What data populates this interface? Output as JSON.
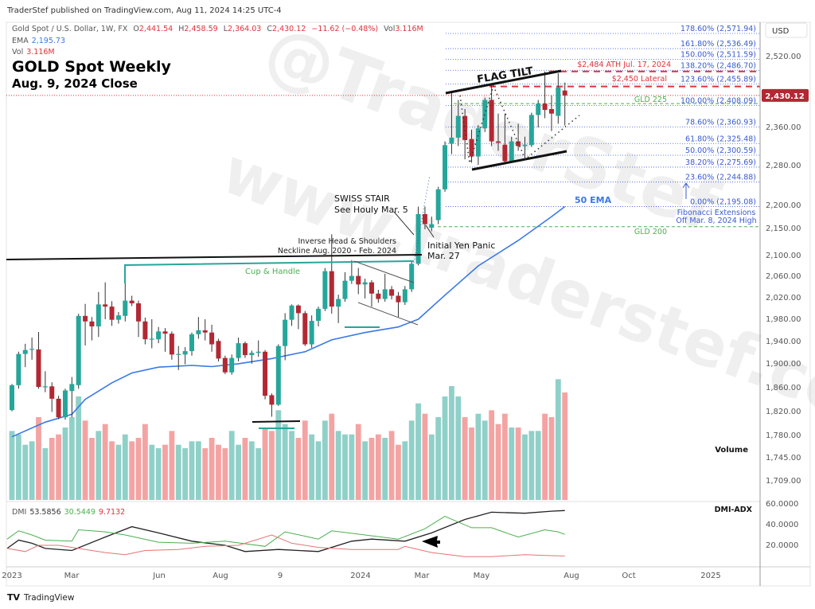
{
  "header": {
    "publisher": "TraderStef published on TradingView.com, Aug 11, 2024 14:25 UTC-4",
    "symbol": "Gold Spot / U.S. Dollar, 1W, FX",
    "o_label": "O",
    "o": "2,441.54",
    "h_label": "H",
    "h": "2,458.59",
    "l_label": "L",
    "l": "2,364.03",
    "c_label": "C",
    "c": "2,430.12",
    "change": "−11.62 (−0.48%)",
    "vol_label": "Vol",
    "vol": "3.116M",
    "ema_label": "EMA",
    "ema": "2,195.73",
    "vol2_label": "Vol",
    "vol2": "3.116M",
    "title": "GOLD Spot Weekly",
    "subtitle": "Aug. 9, 2024 Close"
  },
  "price_axis": {
    "currency": "USD",
    "ticks": [
      "2,520.00",
      "2,360.00",
      "2,280.00",
      "2,200.00",
      "2,150.00",
      "2,100.00",
      "2,060.00",
      "2,020.00",
      "1,980.00",
      "1,940.00",
      "1,900.00",
      "1,860.00",
      "1,820.00",
      "1,780.00",
      "1,745.00",
      "1,709.00"
    ],
    "last_price": "2,430.12",
    "scale": "log"
  },
  "time_axis": [
    "2023",
    "Mar",
    "Jun",
    "Aug",
    "9",
    "2024",
    "Mar",
    "May",
    "Aug",
    "Oct",
    "2025"
  ],
  "annotations": {
    "flag": "FLAG TILT",
    "ath": "$2,484 ATH Jul. 17, 2024",
    "lateral": "$2,450 Lateral",
    "gld225": "GLD 225",
    "gld200": "GLD 200",
    "ema50": "50 EMA",
    "fib_note_1": "Fibonacci Extensions",
    "fib_note_2": "Off Mar. 8, 2024 High",
    "swiss_1": "SWISS STAIR",
    "swiss_2": "See Houly Mar. 5",
    "ihs_1": "Inverse Head & Shoulders",
    "ihs_2": "Neckline Aug. 2020 - Feb. 2024",
    "yen_1": "Initial Yen Panic",
    "yen_2": "Mar. 27",
    "cup": "Cup & Handle",
    "volume": "Volume",
    "watermark_1": "@TraderStef",
    "watermark_2": "www.traderstef.com"
  },
  "fib_levels": [
    {
      "label": "178.60% (2,571.94)",
      "price": 2571.94
    },
    {
      "label": "161.80% (2,536.49)",
      "price": 2536.49
    },
    {
      "label": "150.00% (2,511.59)",
      "price": 2511.59
    },
    {
      "label": "138.20% (2,486.70)",
      "price": 2486.7
    },
    {
      "label": "123.60% (2,455.89)",
      "price": 2455.89
    },
    {
      "label": "100.00% (2,408.09)",
      "price": 2408.09
    },
    {
      "label": "78.60% (2,360.93)",
      "price": 2360.93
    },
    {
      "label": "61.80% (2,325.48)",
      "price": 2325.48
    },
    {
      "label": "50.00% (2,300.59)",
      "price": 2300.59
    },
    {
      "label": "38.20% (2,275.69)",
      "price": 2275.69
    },
    {
      "label": "23.60% (2,244.88)",
      "price": 2244.88
    },
    {
      "label": "0.00% (2,195.08)",
      "price": 2195.08
    }
  ],
  "dmi": {
    "label": "DMI",
    "adx": "53.5856",
    "plus_di": "30.5449",
    "minus_di": "9.7132",
    "title": "DMI-ADX",
    "ticks": [
      "60.0000",
      "40.0000",
      "20.0000"
    ]
  },
  "footer": {
    "brand": "TradingView"
  },
  "colors": {
    "up": "#26a69a",
    "down": "#b22833",
    "vol_up": "#8fd0c8",
    "vol_down": "#f4a3a3",
    "ema": "#3b78e7",
    "fib": "#3a5bd0",
    "red_level": "#e0323c",
    "gld": "#4caf50",
    "adx": "#222222",
    "plus_di": "#4caf50",
    "minus_di": "#e57373"
  },
  "chart_data": {
    "type": "candlestick",
    "interval": "1W",
    "x_range": [
      "Jan 2023",
      "Aug 9 2024"
    ],
    "ohlc": [
      [
        1822,
        1866,
        1820,
        1864
      ],
      [
        1864,
        1922,
        1858,
        1918
      ],
      [
        1918,
        1936,
        1895,
        1925
      ],
      [
        1926,
        1947,
        1908,
        1927
      ],
      [
        1926,
        1957,
        1858,
        1861
      ],
      [
        1861,
        1888,
        1852,
        1862
      ],
      [
        1862,
        1869,
        1819,
        1841
      ],
      [
        1841,
        1846,
        1807,
        1810
      ],
      [
        1810,
        1858,
        1806,
        1855
      ],
      [
        1854,
        1878,
        1810,
        1866
      ],
      [
        1864,
        1990,
        1858,
        1986
      ],
      [
        1986,
        2008,
        1933,
        1976
      ],
      [
        1976,
        1984,
        1942,
        1967
      ],
      [
        1967,
        2030,
        1948,
        2007
      ],
      [
        2007,
        2048,
        1980,
        2003
      ],
      [
        2003,
        2013,
        1968,
        1979
      ],
      [
        1979,
        1993,
        1972,
        1987
      ],
      [
        1986,
        2079,
        1976,
        2014
      ],
      [
        2014,
        2023,
        2004,
        2009
      ],
      [
        2009,
        2014,
        1948,
        1976
      ],
      [
        1976,
        1983,
        1935,
        1944
      ],
      [
        1944,
        1980,
        1928,
        1945
      ],
      [
        1944,
        1966,
        1937,
        1958
      ],
      [
        1958,
        1964,
        1922,
        1954
      ],
      [
        1954,
        1958,
        1908,
        1917
      ],
      [
        1917,
        1932,
        1890,
        1918
      ],
      [
        1917,
        1930,
        1900,
        1923
      ],
      [
        1923,
        1956,
        1915,
        1953
      ],
      [
        1953,
        1984,
        1945,
        1960
      ],
      [
        1960,
        1980,
        1942,
        1956
      ],
      [
        1956,
        1970,
        1922,
        1935
      ],
      [
        1941,
        1945,
        1905,
        1910
      ],
      [
        1911,
        1915,
        1883,
        1886
      ],
      [
        1886,
        1917,
        1882,
        1911
      ],
      [
        1911,
        1947,
        1905,
        1937
      ],
      [
        1937,
        1940,
        1911,
        1916
      ],
      [
        1916,
        1924,
        1901,
        1920
      ],
      [
        1920,
        1942,
        1913,
        1922
      ],
      [
        1922,
        1925,
        1840,
        1846
      ],
      [
        1847,
        1850,
        1811,
        1831
      ],
      [
        1831,
        1935,
        1829,
        1932
      ],
      [
        1932,
        1991,
        1907,
        1979
      ],
      [
        1979,
        2007,
        1968,
        2005
      ],
      [
        2005,
        2007,
        1962,
        1991
      ],
      [
        1991,
        1995,
        1932,
        1935
      ],
      [
        1935,
        1987,
        1929,
        1977
      ],
      [
        1977,
        2003,
        1967,
        1999
      ],
      [
        1999,
        2075,
        1995,
        2069
      ],
      [
        2069,
        2140,
        1990,
        2003
      ],
      [
        2003,
        2025,
        1973,
        2017
      ],
      [
        2017,
        2067,
        2012,
        2051
      ],
      [
        2051,
        2090,
        2045,
        2060
      ],
      [
        2060,
        2075,
        2026,
        2044
      ],
      [
        2044,
        2055,
        2018,
        2048
      ],
      [
        2048,
        2052,
        2003,
        2027
      ],
      [
        2027,
        2034,
        2010,
        2017
      ],
      [
        2017,
        2064,
        2012,
        2035
      ],
      [
        2035,
        2041,
        2016,
        2023
      ],
      [
        2023,
        2030,
        1984,
        2011
      ],
      [
        2011,
        2041,
        2006,
        2035
      ],
      [
        2035,
        2088,
        2030,
        2083
      ],
      [
        2083,
        2195,
        2080,
        2180
      ],
      [
        2180,
        2195,
        2150,
        2160
      ],
      [
        2153,
        2175,
        2146,
        2160
      ],
      [
        2168,
        2235,
        2160,
        2230
      ],
      [
        2230,
        2330,
        2225,
        2322
      ],
      [
        2325,
        2438,
        2303,
        2338
      ],
      [
        2338,
        2420,
        2320,
        2385
      ],
      [
        2385,
        2400,
        2292,
        2333
      ],
      [
        2335,
        2355,
        2285,
        2298
      ],
      [
        2298,
        2365,
        2280,
        2358
      ],
      [
        2358,
        2425,
        2350,
        2420
      ],
      [
        2420,
        2456,
        2320,
        2330
      ],
      [
        2330,
        2390,
        2310,
        2327
      ],
      [
        2323,
        2390,
        2285,
        2288
      ],
      [
        2288,
        2340,
        2285,
        2330
      ],
      [
        2330,
        2368,
        2310,
        2320
      ],
      [
        2320,
        2340,
        2293,
        2323
      ],
      [
        2322,
        2392,
        2318,
        2387
      ],
      [
        2387,
        2420,
        2360,
        2412
      ],
      [
        2412,
        2484,
        2380,
        2398
      ],
      [
        2400,
        2430,
        2352,
        2390
      ],
      [
        2385,
        2480,
        2368,
        2448
      ],
      [
        2441,
        2459,
        2364,
        2430
      ]
    ],
    "volume_m": [
      2.0,
      1.9,
      1.6,
      1.7,
      2.4,
      1.5,
      1.8,
      1.9,
      2.1,
      2.4,
      3.0,
      2.3,
      1.8,
      2.0,
      2.2,
      1.7,
      1.6,
      1.9,
      1.7,
      1.8,
      2.2,
      1.6,
      1.5,
      1.6,
      2.0,
      1.6,
      1.5,
      1.7,
      1.7,
      1.5,
      1.8,
      1.6,
      1.5,
      2.0,
      1.6,
      1.8,
      1.7,
      1.5,
      2.1,
      2.0,
      2.6,
      2.2,
      2.0,
      1.8,
      2.3,
      1.9,
      1.7,
      2.3,
      2.5,
      2.0,
      1.9,
      1.9,
      2.2,
      1.7,
      1.8,
      1.9,
      1.8,
      2.0,
      1.6,
      1.7,
      2.3,
      2.8,
      2.5,
      1.9,
      2.4,
      3.0,
      3.3,
      3.0,
      2.4,
      2.1,
      2.5,
      2.3,
      2.6,
      2.2,
      2.5,
      2.1,
      2.1,
      1.9,
      2.0,
      2.0,
      2.5,
      2.4,
      3.5,
      3.116
    ],
    "ema50": [
      [
        0,
        1778
      ],
      [
        5,
        1802
      ],
      [
        9,
        1815
      ],
      [
        11,
        1840
      ],
      [
        15,
        1868
      ],
      [
        18,
        1885
      ],
      [
        22,
        1895
      ],
      [
        27,
        1898
      ],
      [
        30,
        1896
      ],
      [
        34,
        1901
      ],
      [
        39,
        1910
      ],
      [
        44,
        1922
      ],
      [
        48,
        1943
      ],
      [
        53,
        1956
      ],
      [
        58,
        1966
      ],
      [
        61,
        1980
      ],
      [
        65,
        2024
      ],
      [
        70,
        2079
      ],
      [
        76,
        2128
      ],
      [
        81,
        2175
      ],
      [
        83,
        2195
      ]
    ],
    "adx": [
      [
        -1,
        17
      ],
      [
        1,
        25
      ],
      [
        3,
        22
      ],
      [
        5,
        17
      ],
      [
        9,
        15
      ],
      [
        14,
        28
      ],
      [
        18,
        38
      ],
      [
        22,
        32
      ],
      [
        27,
        24
      ],
      [
        32,
        20
      ],
      [
        35,
        14
      ],
      [
        40,
        16
      ],
      [
        46,
        14
      ],
      [
        51,
        24
      ],
      [
        54,
        26
      ],
      [
        59,
        24
      ],
      [
        63,
        32
      ],
      [
        68,
        45
      ],
      [
        72,
        52
      ],
      [
        77,
        51
      ],
      [
        81,
        53
      ],
      [
        83,
        53.59
      ]
    ],
    "plus_di": [
      [
        -1,
        26
      ],
      [
        1,
        34
      ],
      [
        3,
        30
      ],
      [
        5,
        25
      ],
      [
        9,
        24
      ],
      [
        10,
        35
      ],
      [
        14,
        33
      ],
      [
        17,
        30
      ],
      [
        22,
        23
      ],
      [
        27,
        22
      ],
      [
        32,
        24
      ],
      [
        38,
        19
      ],
      [
        41,
        33
      ],
      [
        46,
        26
      ],
      [
        48,
        34
      ],
      [
        53,
        30
      ],
      [
        58,
        26
      ],
      [
        62,
        36
      ],
      [
        65,
        48
      ],
      [
        69,
        37
      ],
      [
        72,
        37
      ],
      [
        76,
        28
      ],
      [
        80,
        35
      ],
      [
        82,
        33
      ],
      [
        83,
        30.54
      ]
    ],
    "minus_di": [
      [
        -1,
        17
      ],
      [
        2,
        14
      ],
      [
        4,
        20
      ],
      [
        7,
        20
      ],
      [
        10,
        17
      ],
      [
        14,
        13
      ],
      [
        17,
        11
      ],
      [
        20,
        15
      ],
      [
        25,
        16
      ],
      [
        29,
        19
      ],
      [
        34,
        20
      ],
      [
        39,
        30
      ],
      [
        42,
        22
      ],
      [
        46,
        18
      ],
      [
        51,
        16
      ],
      [
        56,
        16
      ],
      [
        58,
        16
      ],
      [
        59,
        19
      ],
      [
        63,
        13
      ],
      [
        68,
        9
      ],
      [
        72,
        9
      ],
      [
        77,
        11
      ],
      [
        81,
        10
      ],
      [
        83,
        9.71
      ]
    ]
  }
}
